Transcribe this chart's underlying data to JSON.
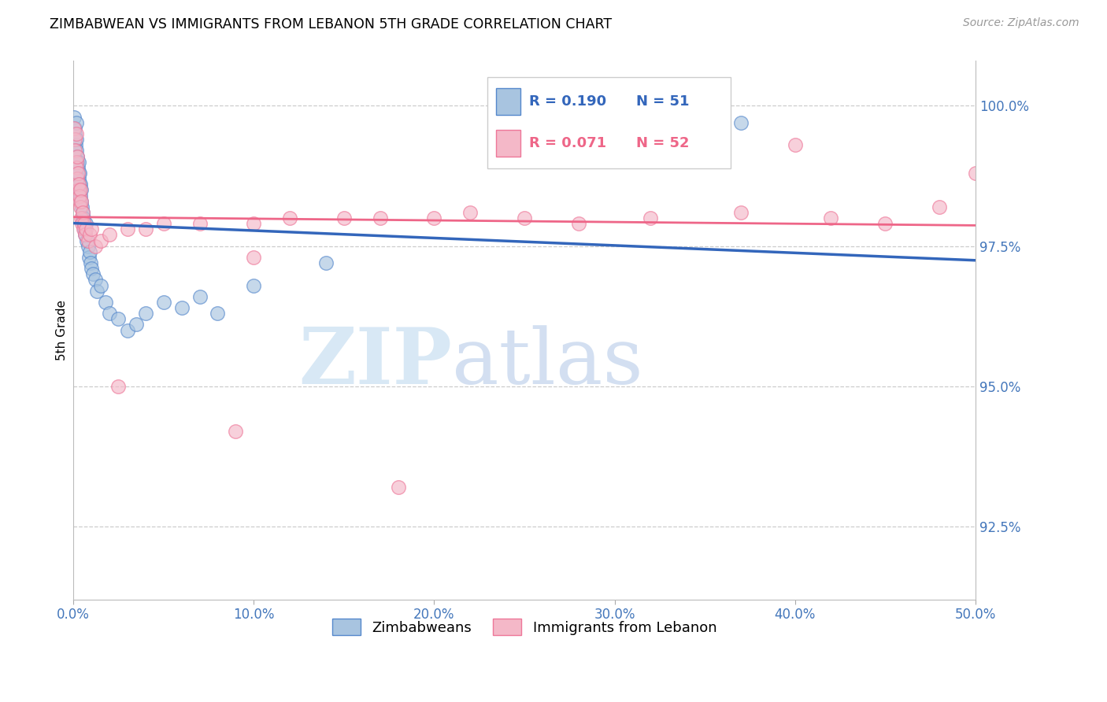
{
  "title": "ZIMBABWEAN VS IMMIGRANTS FROM LEBANON 5TH GRADE CORRELATION CHART",
  "source": "Source: ZipAtlas.com",
  "xlabel_vals": [
    0.0,
    10.0,
    20.0,
    30.0,
    40.0,
    50.0
  ],
  "ylabel_vals": [
    92.5,
    95.0,
    97.5,
    100.0
  ],
  "xlim": [
    0.0,
    50.0
  ],
  "ylim": [
    91.2,
    100.8
  ],
  "ylabel_label": "5th Grade",
  "blue_R": "R = 0.190",
  "blue_N": "N = 51",
  "pink_R": "R = 0.071",
  "pink_N": "N = 52",
  "blue_color": "#A8C4E0",
  "pink_color": "#F4B8C8",
  "blue_edge_color": "#5588CC",
  "pink_edge_color": "#EE7799",
  "blue_line_color": "#3366BB",
  "pink_line_color": "#EE6688",
  "blue_label": "Zimbabweans",
  "pink_label": "Immigrants from Lebanon",
  "blue_x": [
    0.05,
    0.08,
    0.1,
    0.12,
    0.15,
    0.15,
    0.18,
    0.2,
    0.22,
    0.25,
    0.28,
    0.3,
    0.3,
    0.32,
    0.35,
    0.35,
    0.38,
    0.4,
    0.42,
    0.45,
    0.48,
    0.5,
    0.52,
    0.55,
    0.58,
    0.6,
    0.65,
    0.7,
    0.75,
    0.8,
    0.85,
    0.9,
    0.95,
    1.0,
    1.1,
    1.2,
    1.3,
    1.5,
    1.8,
    2.0,
    2.5,
    3.0,
    3.5,
    4.0,
    5.0,
    6.0,
    7.0,
    8.0,
    10.0,
    14.0,
    37.0
  ],
  "blue_y": [
    99.8,
    99.6,
    99.5,
    99.3,
    99.7,
    99.4,
    99.2,
    99.1,
    99.0,
    98.9,
    98.8,
    99.0,
    98.7,
    98.6,
    98.8,
    98.5,
    98.4,
    98.6,
    98.3,
    98.5,
    98.2,
    98.0,
    98.1,
    97.9,
    98.0,
    97.8,
    97.7,
    97.9,
    97.6,
    97.5,
    97.3,
    97.4,
    97.2,
    97.1,
    97.0,
    96.9,
    96.7,
    96.8,
    96.5,
    96.3,
    96.2,
    96.0,
    96.1,
    96.3,
    96.5,
    96.4,
    96.6,
    96.3,
    96.8,
    97.2,
    99.7
  ],
  "pink_x": [
    0.05,
    0.08,
    0.1,
    0.15,
    0.15,
    0.18,
    0.2,
    0.22,
    0.25,
    0.28,
    0.3,
    0.32,
    0.35,
    0.38,
    0.4,
    0.42,
    0.45,
    0.48,
    0.5,
    0.55,
    0.6,
    0.65,
    0.7,
    0.8,
    0.9,
    1.0,
    1.2,
    1.5,
    2.0,
    3.0,
    4.0,
    5.0,
    7.0,
    10.0,
    12.0,
    15.0,
    17.0,
    20.0,
    22.0,
    25.0,
    28.0,
    32.0,
    37.0,
    42.0,
    45.0,
    48.0,
    2.5,
    9.0,
    18.0,
    10.0,
    40.0,
    50.0
  ],
  "pink_y": [
    99.6,
    99.4,
    99.2,
    99.5,
    99.0,
    98.9,
    99.1,
    98.7,
    98.8,
    98.5,
    98.6,
    98.3,
    98.4,
    98.2,
    98.5,
    98.0,
    98.3,
    97.9,
    98.1,
    97.8,
    97.9,
    97.7,
    97.8,
    97.6,
    97.7,
    97.8,
    97.5,
    97.6,
    97.7,
    97.8,
    97.8,
    97.9,
    97.9,
    97.9,
    98.0,
    98.0,
    98.0,
    98.0,
    98.1,
    98.0,
    97.9,
    98.0,
    98.1,
    98.0,
    97.9,
    98.2,
    95.0,
    94.2,
    93.2,
    97.3,
    99.3,
    98.8
  ]
}
